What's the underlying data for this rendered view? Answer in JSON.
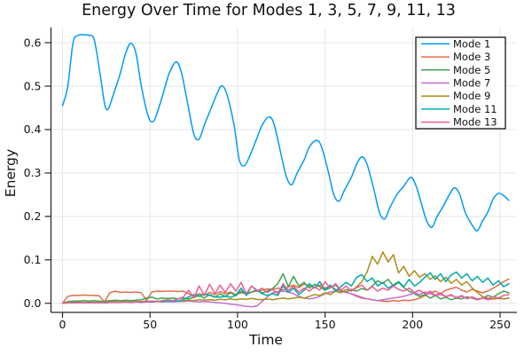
{
  "chart_data": {
    "type": "line",
    "title": "Energy Over Time for Modes 1, 3, 5, 7, 9, 11, 13",
    "xlabel": "Time",
    "ylabel": "Energy",
    "xlim": [
      -6.6,
      259.6
    ],
    "ylim": [
      -0.021,
      0.635
    ],
    "xticks": [
      0,
      50,
      100,
      150,
      200,
      250
    ],
    "yticks": [
      0.0,
      0.1,
      0.2,
      0.3,
      0.4,
      0.5,
      0.6
    ],
    "grid": true,
    "legend_position": "top-right",
    "series": [
      {
        "name": "Mode 1",
        "color": "#009AFA",
        "smooth": true,
        "t": [
          0,
          3,
          6,
          9,
          12,
          15,
          18,
          21,
          24,
          26,
          29,
          33,
          36,
          39,
          42,
          45,
          49,
          52,
          55,
          58,
          61,
          65,
          68,
          71,
          75,
          78,
          81,
          85,
          88,
          91,
          94,
          98,
          101,
          104,
          107,
          111,
          114,
          118,
          121,
          125,
          128,
          131,
          134,
          138,
          141,
          145,
          148,
          152,
          155,
          158,
          161,
          165,
          168,
          171,
          174,
          178,
          181,
          184,
          187,
          191,
          195,
          199,
          202,
          205,
          208,
          211,
          214,
          217,
          221,
          224,
          227,
          230,
          234,
          237,
          240,
          243,
          246,
          249,
          252,
          255
        ],
        "values": [
          0.455,
          0.5,
          0.6,
          0.617,
          0.618,
          0.617,
          0.608,
          0.54,
          0.46,
          0.447,
          0.48,
          0.53,
          0.575,
          0.599,
          0.575,
          0.5,
          0.43,
          0.419,
          0.45,
          0.49,
          0.53,
          0.556,
          0.53,
          0.47,
          0.39,
          0.378,
          0.41,
          0.45,
          0.48,
          0.501,
          0.48,
          0.41,
          0.33,
          0.317,
          0.34,
          0.38,
          0.41,
          0.429,
          0.41,
          0.34,
          0.29,
          0.273,
          0.3,
          0.33,
          0.36,
          0.375,
          0.36,
          0.3,
          0.25,
          0.235,
          0.26,
          0.29,
          0.32,
          0.337,
          0.32,
          0.26,
          0.21,
          0.194,
          0.22,
          0.25,
          0.27,
          0.29,
          0.27,
          0.23,
          0.19,
          0.175,
          0.2,
          0.22,
          0.25,
          0.266,
          0.25,
          0.21,
          0.18,
          0.167,
          0.19,
          0.21,
          0.24,
          0.253,
          0.248,
          0.237
        ]
      },
      {
        "name": "Mode 3",
        "color": "#E36F47",
        "smooth": false,
        "t0": 0,
        "dt": 3,
        "values": [
          0.0,
          0.016,
          0.018,
          0.018,
          0.019,
          0.018,
          0.018,
          0.017,
          0.003,
          0.024,
          0.028,
          0.025,
          0.026,
          0.025,
          0.026,
          0.024,
          0.007,
          0.026,
          0.028,
          0.027,
          0.028,
          0.028,
          0.027,
          0.028,
          0.022,
          0.018,
          0.022,
          0.018,
          0.025,
          0.02,
          0.027,
          0.022,
          0.026,
          0.02,
          0.024,
          0.023,
          0.026,
          0.028,
          0.03,
          0.033,
          0.032,
          0.035,
          0.03,
          0.038,
          0.042,
          0.036,
          0.044,
          0.04,
          0.037,
          0.042,
          0.035,
          0.04,
          0.032,
          0.03,
          0.025,
          0.022,
          0.016,
          0.012,
          0.01,
          0.008,
          0.006,
          0.005,
          0.004,
          0.006,
          0.005,
          0.007,
          0.006,
          0.008,
          0.012,
          0.018,
          0.024,
          0.028,
          0.022,
          0.03,
          0.034,
          0.037,
          0.03,
          0.026,
          0.032,
          0.028,
          0.024,
          0.028,
          0.035,
          0.042,
          0.05,
          0.056
        ]
      },
      {
        "name": "Mode 5",
        "color": "#3DA44D",
        "smooth": false,
        "t0": 0,
        "dt": 3,
        "values": [
          0.0,
          0.004,
          0.005,
          0.005,
          0.006,
          0.005,
          0.006,
          0.005,
          0.004,
          0.006,
          0.007,
          0.006,
          0.007,
          0.006,
          0.007,
          0.008,
          0.012,
          0.014,
          0.01,
          0.012,
          0.011,
          0.012,
          0.01,
          0.012,
          0.01,
          0.014,
          0.018,
          0.012,
          0.02,
          0.014,
          0.022,
          0.016,
          0.024,
          0.018,
          0.028,
          0.02,
          0.026,
          0.03,
          0.024,
          0.028,
          0.034,
          0.045,
          0.068,
          0.038,
          0.062,
          0.04,
          0.048,
          0.035,
          0.044,
          0.038,
          0.03,
          0.036,
          0.042,
          0.03,
          0.026,
          0.032,
          0.028,
          0.034,
          0.03,
          0.04,
          0.052,
          0.046,
          0.055,
          0.04,
          0.048,
          0.036,
          0.028,
          0.022,
          0.016,
          0.02,
          0.012,
          0.018,
          0.01,
          0.014,
          0.008,
          0.012,
          0.01,
          0.015,
          0.012,
          0.008,
          0.012,
          0.018,
          0.014,
          0.022,
          0.028,
          0.024
        ]
      },
      {
        "name": "Mode 7",
        "color": "#C271D4",
        "smooth": false,
        "t0": 0,
        "dt": 3,
        "values": [
          0.0,
          0.001,
          0.001,
          0.002,
          0.001,
          0.002,
          0.001,
          0.002,
          0.001,
          0.002,
          0.002,
          0.002,
          0.003,
          0.002,
          0.003,
          0.002,
          0.003,
          0.003,
          0.004,
          0.003,
          0.004,
          0.003,
          0.004,
          0.004,
          0.005,
          0.004,
          0.003,
          0.004,
          0.003,
          0.002,
          0.001,
          0.0,
          -0.002,
          -0.003,
          -0.005,
          -0.007,
          -0.008,
          -0.006,
          0.004,
          0.015,
          0.024,
          0.027,
          0.028,
          0.026,
          0.022,
          0.016,
          0.012,
          0.01,
          0.012,
          0.016,
          0.022,
          0.026,
          0.028,
          0.027,
          0.025,
          0.022,
          0.018,
          0.014,
          0.01,
          0.008,
          0.006,
          0.008,
          0.01,
          0.012,
          0.014,
          0.016,
          0.02,
          0.024,
          0.02,
          0.026,
          0.022,
          0.018,
          0.02,
          0.016,
          0.018,
          0.014,
          0.016,
          0.012,
          0.014,
          0.01,
          0.012,
          0.008,
          0.01,
          0.012,
          0.01,
          0.012
        ]
      },
      {
        "name": "Mode 9",
        "color": "#AC8D18",
        "smooth": false,
        "t0": 0,
        "dt": 3,
        "values": [
          0.0,
          0.002,
          0.002,
          0.003,
          0.002,
          0.003,
          0.002,
          0.003,
          0.002,
          0.003,
          0.004,
          0.003,
          0.004,
          0.003,
          0.004,
          0.004,
          0.005,
          0.004,
          0.005,
          0.004,
          0.005,
          0.006,
          0.005,
          0.006,
          0.007,
          0.006,
          0.008,
          0.007,
          0.008,
          0.007,
          0.009,
          0.008,
          0.01,
          0.008,
          0.01,
          0.009,
          0.011,
          0.009,
          0.008,
          0.01,
          0.008,
          0.01,
          0.012,
          0.01,
          0.012,
          0.014,
          0.012,
          0.016,
          0.02,
          0.018,
          0.024,
          0.02,
          0.028,
          0.024,
          0.032,
          0.028,
          0.038,
          0.05,
          0.072,
          0.108,
          0.09,
          0.118,
          0.095,
          0.112,
          0.07,
          0.085,
          0.062,
          0.075,
          0.06,
          0.068,
          0.055,
          0.063,
          0.05,
          0.06,
          0.046,
          0.055,
          0.042,
          0.05,
          0.035,
          0.025,
          0.015,
          0.012,
          0.01,
          0.011,
          0.01,
          0.012
        ]
      },
      {
        "name": "Mode 11",
        "color": "#00A9AD",
        "smooth": false,
        "t0": 0,
        "dt": 3,
        "values": [
          0.0,
          0.001,
          0.001,
          0.002,
          0.001,
          0.002,
          0.001,
          0.002,
          0.001,
          0.002,
          0.002,
          0.002,
          0.003,
          0.002,
          0.003,
          0.003,
          0.004,
          0.003,
          0.004,
          0.005,
          0.004,
          0.006,
          0.005,
          0.008,
          0.015,
          0.02,
          0.016,
          0.022,
          0.018,
          0.015,
          0.014,
          0.016,
          0.014,
          0.018,
          0.035,
          0.018,
          0.04,
          0.03,
          0.022,
          0.018,
          0.022,
          0.018,
          0.04,
          0.025,
          0.035,
          0.02,
          0.03,
          0.045,
          0.035,
          0.05,
          0.03,
          0.042,
          0.028,
          0.038,
          0.048,
          0.04,
          0.06,
          0.066,
          0.05,
          0.058,
          0.04,
          0.048,
          0.035,
          0.042,
          0.05,
          0.038,
          0.055,
          0.04,
          0.048,
          0.06,
          0.07,
          0.055,
          0.068,
          0.05,
          0.065,
          0.072,
          0.058,
          0.068,
          0.052,
          0.062,
          0.048,
          0.058,
          0.042,
          0.052,
          0.038,
          0.045
        ]
      },
      {
        "name": "Mode 13",
        "color": "#ED5D92",
        "smooth": false,
        "t0": 0,
        "dt": 3,
        "values": [
          0.0,
          0.001,
          0.002,
          0.001,
          0.002,
          0.001,
          0.002,
          0.001,
          0.002,
          0.002,
          0.003,
          0.002,
          0.003,
          0.002,
          0.003,
          0.004,
          0.003,
          0.005,
          0.004,
          0.006,
          0.008,
          0.006,
          0.01,
          0.014,
          0.03,
          0.012,
          0.04,
          0.018,
          0.044,
          0.022,
          0.042,
          0.025,
          0.045,
          0.028,
          0.048,
          0.022,
          0.04,
          0.028,
          0.035,
          0.025,
          0.032,
          0.022,
          0.045,
          0.03,
          0.04,
          0.026,
          0.035,
          0.028,
          0.038,
          0.03,
          0.05,
          0.035,
          0.045,
          0.03,
          0.04,
          0.028,
          0.036,
          0.042,
          0.03,
          0.038,
          0.028,
          0.035,
          0.03,
          0.04,
          0.032,
          0.028,
          0.035,
          0.025,
          0.03,
          0.022,
          0.028,
          0.018,
          0.024,
          0.015,
          0.02,
          0.012,
          0.018,
          0.01,
          0.015,
          0.008,
          0.012,
          0.01,
          0.015,
          0.012,
          0.018,
          0.02
        ]
      }
    ],
    "style": {
      "grid_color": "#e6e6e6",
      "spine_color": "#2a2a2a",
      "legend_border_color": "#000000",
      "legend_bg_color": "#ffffff",
      "background": "#ffffff"
    }
  }
}
